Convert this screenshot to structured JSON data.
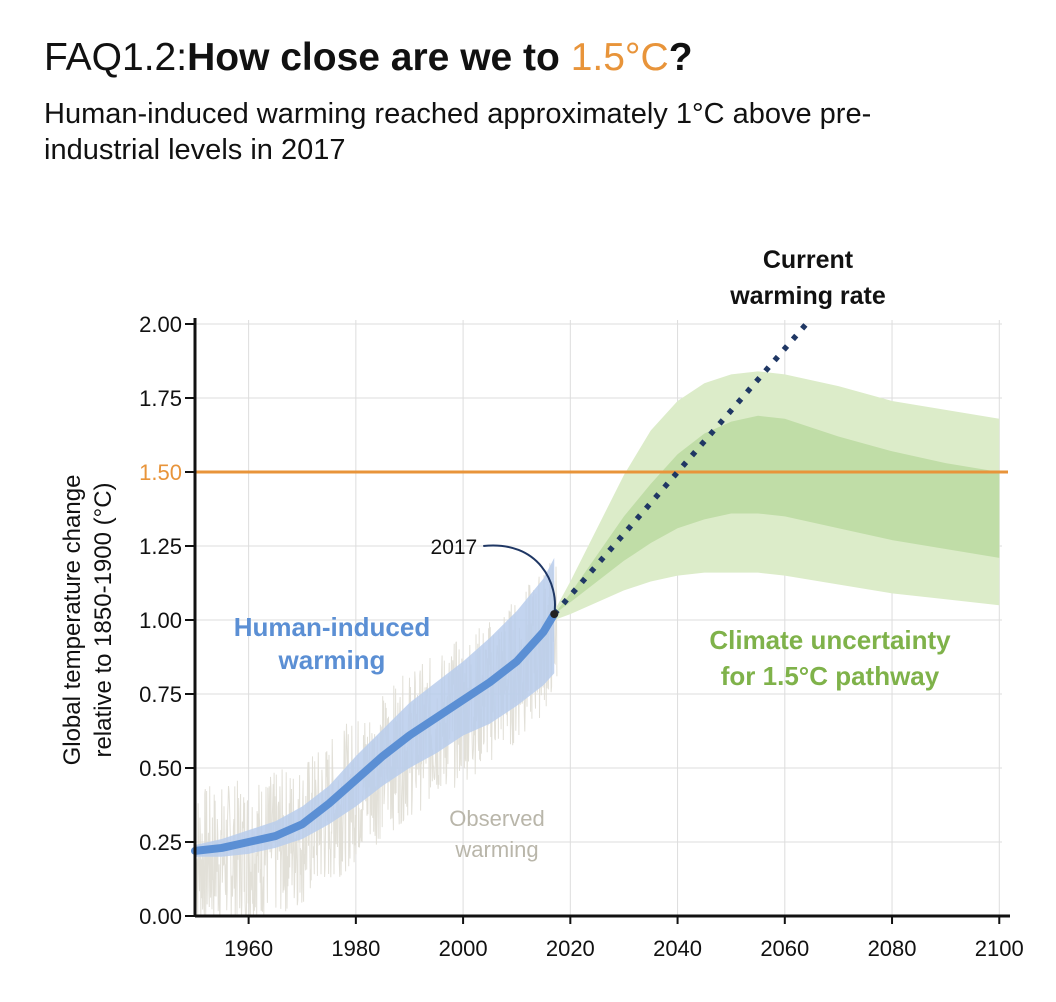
{
  "header": {
    "title_prefix": "FAQ1.2:",
    "title_main": "How close are we to ",
    "title_accent": "1.5°C",
    "title_suffix": "?",
    "subtitle": "Human-induced warming reached approximately 1°C above pre-industrial levels in 2017"
  },
  "colors": {
    "accent_orange": "#e8943a",
    "human_line": "#5b8fd4",
    "human_band": "#b9ccec",
    "green_outer": "#dcecc9",
    "green_inner": "#c0dda7",
    "green_label": "#7fb24a",
    "dotted_line": "#1f3764",
    "observed": "#b9b6aa",
    "grid": "#dddddd"
  },
  "chart_data": {
    "type": "line",
    "ylabel": [
      "Global temperature change",
      "relative to 1850-1900 (°C)"
    ],
    "xlim": [
      1950,
      2102
    ],
    "ylim": [
      0,
      2.0
    ],
    "x_ticks": [
      1960,
      1980,
      2000,
      2020,
      2040,
      2060,
      2080,
      2100
    ],
    "y_ticks": [
      "0.00",
      "0.25",
      "0.50",
      "0.75",
      "1.00",
      "1.25",
      "1.50",
      "1.75",
      "2.00"
    ],
    "y_tick_values": [
      0,
      0.25,
      0.5,
      0.75,
      1.0,
      1.25,
      1.5,
      1.75,
      2.0
    ],
    "grid": true,
    "reference_line": {
      "value": 1.5
    },
    "annotations": {
      "marker_label": "2017",
      "marker_point": {
        "x": 2017,
        "y": 1.02
      },
      "human_label": [
        "Human-induced",
        "warming"
      ],
      "observed_label": [
        "Observed",
        "warming"
      ],
      "current_rate_label": [
        "Current",
        "warming rate"
      ],
      "uncertainty_label": [
        "Climate uncertainty",
        "for 1.5°C pathway"
      ]
    },
    "series": [
      {
        "name": "Human-induced warming",
        "style": "solid",
        "x": [
          1950,
          1955,
          1960,
          1965,
          1970,
          1975,
          1980,
          1985,
          1990,
          1995,
          2000,
          2005,
          2010,
          2015,
          2017
        ],
        "y": [
          0.22,
          0.23,
          0.25,
          0.27,
          0.31,
          0.38,
          0.46,
          0.54,
          0.61,
          0.67,
          0.73,
          0.79,
          0.86,
          0.96,
          1.02
        ],
        "lower": [
          0.2,
          0.2,
          0.21,
          0.23,
          0.26,
          0.31,
          0.37,
          0.44,
          0.5,
          0.55,
          0.61,
          0.65,
          0.71,
          0.78,
          0.82
        ],
        "upper": [
          0.24,
          0.26,
          0.29,
          0.32,
          0.37,
          0.44,
          0.54,
          0.63,
          0.72,
          0.79,
          0.86,
          0.94,
          1.03,
          1.14,
          1.21
        ]
      },
      {
        "name": "Current warming rate",
        "style": "dotted",
        "x": [
          2017,
          2064
        ],
        "y": [
          1.02,
          2.0
        ]
      },
      {
        "name": "Climate uncertainty for 1.5°C pathway",
        "style": "band",
        "x": [
          2017,
          2020,
          2025,
          2030,
          2035,
          2040,
          2045,
          2050,
          2055,
          2060,
          2070,
          2080,
          2090,
          2100
        ],
        "outer_lower": [
          1.0,
          1.02,
          1.06,
          1.1,
          1.13,
          1.15,
          1.16,
          1.16,
          1.16,
          1.15,
          1.12,
          1.09,
          1.07,
          1.05
        ],
        "inner_lower": [
          1.02,
          1.06,
          1.13,
          1.2,
          1.26,
          1.31,
          1.34,
          1.36,
          1.36,
          1.35,
          1.31,
          1.27,
          1.24,
          1.21
        ],
        "inner_upper": [
          1.02,
          1.09,
          1.22,
          1.35,
          1.46,
          1.56,
          1.63,
          1.67,
          1.69,
          1.68,
          1.62,
          1.57,
          1.53,
          1.5
        ],
        "outer_upper": [
          1.03,
          1.13,
          1.31,
          1.49,
          1.64,
          1.74,
          1.8,
          1.83,
          1.84,
          1.83,
          1.79,
          1.74,
          1.71,
          1.68
        ]
      }
    ]
  }
}
